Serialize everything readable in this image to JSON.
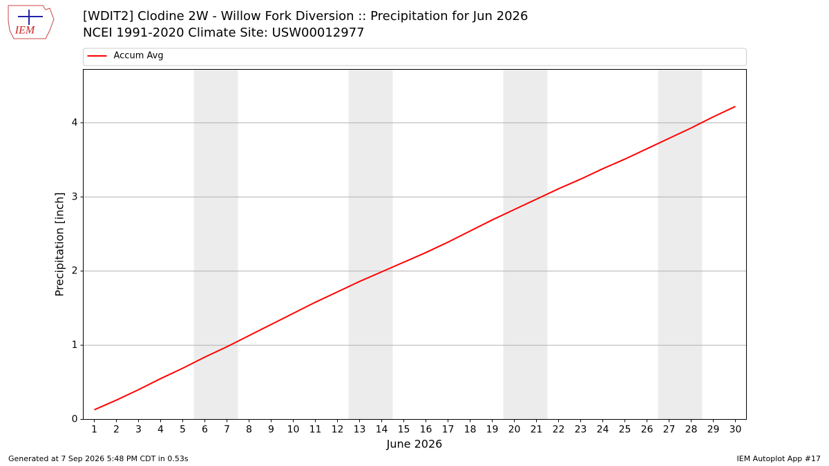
{
  "logo_text": "IEM",
  "chart_data": {
    "type": "line",
    "title": "[WDIT2] Clodine 2W - Willow Fork Diversion :: Precipitation for Jun 2026",
    "subtitle": "NCEI 1991-2020 Climate Site: USW00012977",
    "xlabel": "June 2026",
    "ylabel": "Precipitation [inch]",
    "x": [
      1,
      2,
      3,
      4,
      5,
      6,
      7,
      8,
      9,
      10,
      11,
      12,
      13,
      14,
      15,
      16,
      17,
      18,
      19,
      20,
      21,
      22,
      23,
      24,
      25,
      26,
      27,
      28,
      29,
      30
    ],
    "series": [
      {
        "name": "Accum Avg",
        "color": "#ff0000",
        "values": [
          0.13,
          0.26,
          0.4,
          0.55,
          0.69,
          0.84,
          0.98,
          1.13,
          1.28,
          1.43,
          1.58,
          1.72,
          1.86,
          1.99,
          2.12,
          2.25,
          2.39,
          2.54,
          2.69,
          2.83,
          2.97,
          3.11,
          3.24,
          3.38,
          3.51,
          3.65,
          3.79,
          3.93,
          4.08,
          4.22
        ]
      }
    ],
    "xlim": [
      0.5,
      30.5
    ],
    "ylim": [
      0,
      4.72
    ],
    "xticks": [
      1,
      2,
      3,
      4,
      5,
      6,
      7,
      8,
      9,
      10,
      11,
      12,
      13,
      14,
      15,
      16,
      17,
      18,
      19,
      20,
      21,
      22,
      23,
      24,
      25,
      26,
      27,
      28,
      29,
      30
    ],
    "yticks": [
      0,
      1,
      2,
      3,
      4
    ],
    "shaded_ranges": [
      [
        5.5,
        7.5
      ],
      [
        12.5,
        14.5
      ],
      [
        19.5,
        21.5
      ],
      [
        26.5,
        28.5
      ]
    ],
    "shade_color": "#ececec",
    "grid": true,
    "legend": "top"
  },
  "footer": {
    "left": "Generated at 7 Sep 2026 5:48 PM CDT in 0.53s",
    "right": "IEM Autoplot App #17"
  }
}
